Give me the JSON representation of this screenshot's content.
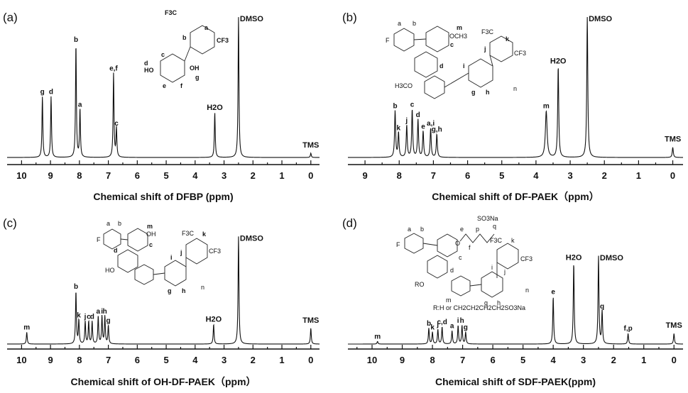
{
  "chart_data": [
    {
      "type": "line",
      "panel_label": "(a)",
      "xlabel": "Chemical shift of DFBP (ppm)",
      "xlim": [
        10.5,
        -0.3
      ],
      "xticks": [
        10,
        9,
        8,
        7,
        6,
        5,
        4,
        3,
        2,
        1,
        0
      ],
      "peaks": [
        {
          "x": 9.28,
          "h": 0.42,
          "label": "g"
        },
        {
          "x": 8.98,
          "h": 0.42,
          "label": "d"
        },
        {
          "x": 8.12,
          "h": 0.78,
          "label": "b"
        },
        {
          "x": 7.98,
          "h": 0.33,
          "label": "a"
        },
        {
          "x": 6.82,
          "h": 0.58,
          "label": "e,f"
        },
        {
          "x": 6.72,
          "h": 0.2,
          "label": "c"
        },
        {
          "x": 3.32,
          "h": 0.31,
          "label": "H2O"
        },
        {
          "x": 2.5,
          "h": 0.97,
          "label": "DMSO"
        },
        {
          "x": 0.0,
          "h": 0.03,
          "label": "TMS"
        }
      ],
      "molecule_labels": [
        "F3C",
        "CF3",
        "a",
        "b",
        "c",
        "d",
        "e",
        "f",
        "g",
        "HO",
        "OH"
      ]
    },
    {
      "type": "line",
      "panel_label": "(b)",
      "xlabel": "Chemical shift of DF-PAEK（ppm）",
      "xlim": [
        9.5,
        -0.3
      ],
      "xticks": [
        9,
        8,
        7,
        6,
        5,
        4,
        3,
        2,
        1,
        0
      ],
      "peaks": [
        {
          "x": 8.12,
          "h": 0.32,
          "label": "b"
        },
        {
          "x": 8.02,
          "h": 0.17,
          "label": "k"
        },
        {
          "x": 7.78,
          "h": 0.22,
          "label": "j"
        },
        {
          "x": 7.62,
          "h": 0.33,
          "label": "c"
        },
        {
          "x": 7.45,
          "h": 0.26,
          "label": "d"
        },
        {
          "x": 7.3,
          "h": 0.18,
          "label": "e"
        },
        {
          "x": 7.08,
          "h": 0.2,
          "label": "a,i"
        },
        {
          "x": 6.9,
          "h": 0.16,
          "label": "g,h"
        },
        {
          "x": 3.7,
          "h": 0.32,
          "label": "m"
        },
        {
          "x": 3.35,
          "h": 0.63,
          "label": "H2O"
        },
        {
          "x": 2.5,
          "h": 0.97,
          "label": "DMSO"
        },
        {
          "x": 0.0,
          "h": 0.07,
          "label": "TMS"
        }
      ],
      "molecule_labels": [
        "F",
        "a",
        "b",
        "m",
        "OCH3",
        "c",
        "d",
        "H3CO",
        "F3C",
        "k",
        "j",
        "CF3",
        "i",
        "g",
        "h",
        "n"
      ]
    },
    {
      "type": "line",
      "panel_label": "(c)",
      "xlabel": "Chemical shift of OH-DF-PAEK（ppm）",
      "xlim": [
        10.5,
        -0.3
      ],
      "xticks": [
        10,
        9,
        8,
        7,
        6,
        5,
        4,
        3,
        2,
        1,
        0
      ],
      "peaks": [
        {
          "x": 9.82,
          "h": 0.09,
          "label": "m"
        },
        {
          "x": 8.12,
          "h": 0.4,
          "label": "b"
        },
        {
          "x": 8.02,
          "h": 0.18,
          "label": "k"
        },
        {
          "x": 7.8,
          "h": 0.17,
          "label": "j"
        },
        {
          "x": 7.68,
          "h": 0.17,
          "label": "c"
        },
        {
          "x": 7.56,
          "h": 0.17,
          "label": "d"
        },
        {
          "x": 7.35,
          "h": 0.21,
          "label": "a"
        },
        {
          "x": 7.22,
          "h": 0.21,
          "label": "i"
        },
        {
          "x": 7.12,
          "h": 0.21,
          "label": "h"
        },
        {
          "x": 7.0,
          "h": 0.14,
          "label": "g"
        },
        {
          "x": 3.36,
          "h": 0.15,
          "label": "H2O"
        },
        {
          "x": 2.5,
          "h": 0.82,
          "label": "DMSO"
        },
        {
          "x": 0.0,
          "h": 0.12,
          "label": "TMS"
        }
      ],
      "molecule_labels": [
        "F",
        "a",
        "b",
        "m",
        "OH",
        "c",
        "d",
        "HO",
        "F3C",
        "k",
        "j",
        "CF3",
        "i",
        "g",
        "h",
        "n"
      ]
    },
    {
      "type": "line",
      "panel_label": "(d)",
      "xlabel": "Chemical shift of SDF-PAEK(ppm)",
      "xlim": [
        10.8,
        -0.3
      ],
      "xticks": [
        10,
        9,
        8,
        7,
        6,
        5,
        4,
        3,
        2,
        1,
        0
      ],
      "peaks": [
        {
          "x": 9.82,
          "h": 0.02,
          "label": "m"
        },
        {
          "x": 8.12,
          "h": 0.12,
          "label": "b"
        },
        {
          "x": 8.0,
          "h": 0.09,
          "label": "k"
        },
        {
          "x": 7.82,
          "h": 0.11,
          "label": "j"
        },
        {
          "x": 7.68,
          "h": 0.13,
          "label": "c,d"
        },
        {
          "x": 7.35,
          "h": 0.1,
          "label": "a"
        },
        {
          "x": 7.15,
          "h": 0.14,
          "label": "i"
        },
        {
          "x": 7.02,
          "h": 0.14,
          "label": "h"
        },
        {
          "x": 6.9,
          "h": 0.09,
          "label": "g"
        },
        {
          "x": 4.0,
          "h": 0.36,
          "label": "e"
        },
        {
          "x": 3.32,
          "h": 0.62,
          "label": "H2O"
        },
        {
          "x": 2.5,
          "h": 0.67,
          "label": "DMSO"
        },
        {
          "x": 2.38,
          "h": 0.25,
          "label": "q"
        },
        {
          "x": 1.52,
          "h": 0.08,
          "label": "f,p"
        },
        {
          "x": 0.0,
          "h": 0.08,
          "label": "TMS"
        }
      ],
      "molecule_labels": [
        "F",
        "a",
        "b",
        "e",
        "p",
        "q",
        "SO3Na",
        "f",
        "O",
        "F3C",
        "k",
        "CF3",
        "c",
        "d",
        "i",
        "j",
        "RO",
        "g",
        "h",
        "n",
        "m",
        "R:H or CH2CH2CH2CH2SO3Na"
      ]
    }
  ]
}
